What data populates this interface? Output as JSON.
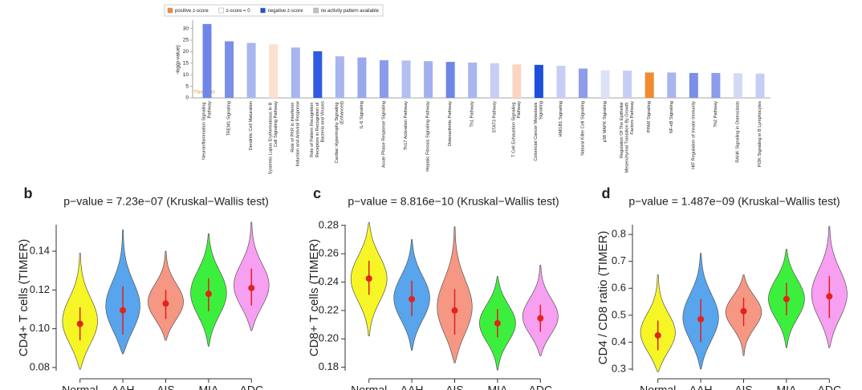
{
  "chart_data": [
    {
      "type": "bar",
      "ylabel": "-log(p-value)",
      "annotation": "Threshold",
      "legend": [
        {
          "label": "positive z-score",
          "color": "#f28a2f"
        },
        {
          "label": "z-score = 0",
          "color": "#ffffff"
        },
        {
          "label": "negative z-score",
          "color": "#1d4fdc"
        },
        {
          "label": "no activity pattern available",
          "color": "#c0c0c0"
        }
      ],
      "categories": [
        "Neuroinflammation Signaling Pathway",
        "TREM1 Signaling",
        "Dendritic Cell Maturation",
        "Systemic Lupus Erythematosus In B Cell Signaling Pathway",
        "Role of PKR in Interferon Induction and Antiviral Response",
        "Role of Pattern Recognition Receptors in Recognition of Bacteria and Viruses",
        "Cardiac Hypertrophy Signaling (Enhanced)",
        "IL-6 Signaling",
        "Acute Phase Response Signaling",
        "Th17 Activation Pathway",
        "Hepatic Fibrosis Signaling Pathway",
        "Osteoarthritis Pathway",
        "Th1 Pathway",
        "STAT3 Pathway",
        "T Cell Exhaustion Signaling Pathway",
        "Colorectal Cancer Metastasis Signaling",
        "HMGB1 Signaling",
        "Natural Killer Cell Signaling",
        "p38 MAPK Signaling",
        "Regulation Of The Epithelial Mesenchymal Transition By Growth Factors Pathway",
        "PPAR Signaling",
        "NF-κB Signaling",
        "HIF Regulation of Innate Immunity",
        "Th2 Pathway",
        "RANK Signaling in Osteoclasts",
        "PI3K Signaling in B Lymphocytes"
      ],
      "values": [
        32,
        24.5,
        23.8,
        23.2,
        21.8,
        20.2,
        18,
        17.5,
        16.3,
        16.2,
        15.9,
        15.6,
        15.3,
        15,
        14.5,
        14.3,
        13.9,
        12.7,
        12,
        11.8,
        11,
        11,
        10.8,
        10.8,
        10.7,
        10.5
      ],
      "colors": [
        "#6f86e8",
        "#7b8fe6",
        "#aab6ee",
        "#fbe0d0",
        "#a9b5ef",
        "#2f5be0",
        "#a9b5ef",
        "#9aa8ec",
        "#8c9cea",
        "#b4bff1",
        "#a3b0ee",
        "#6f86e8",
        "#a9b5ef",
        "#c6cef5",
        "#fbd5c3",
        "#1d4fdc",
        "#c6cef5",
        "#8c9cea",
        "#dde2f8",
        "#c6cef5",
        "#f28a2f",
        "#a9b5ef",
        "#7b8fe6",
        "#8c9cea",
        "#d4daf6",
        "#c6cef5"
      ],
      "ylim": [
        0,
        33
      ],
      "yticks": [
        0,
        5,
        10,
        15,
        20,
        25,
        30
      ]
    },
    {
      "type": "violin",
      "panel": "b",
      "title": "p−value = 7.23e−07 (Kruskal−Wallis test)",
      "ylabel": "CD4+ T cells (TIMER)",
      "categories": [
        "Normal",
        "AAH",
        "AIS",
        "MIA",
        "ADC"
      ],
      "colors": [
        "#f5f51a",
        "#4fa0ec",
        "#f4917c",
        "#33ee33",
        "#f79af0"
      ],
      "mean": [
        0.1025,
        0.1095,
        0.113,
        0.118,
        0.121
      ],
      "lower": [
        0.094,
        0.097,
        0.105,
        0.109,
        0.112
      ],
      "upper": [
        0.111,
        0.122,
        0.12,
        0.126,
        0.131
      ],
      "min": [
        0.079,
        0.087,
        0.094,
        0.091,
        0.099
      ],
      "max": [
        0.139,
        0.151,
        0.14,
        0.149,
        0.155
      ],
      "ylim": [
        0.075,
        0.157
      ],
      "yticks": [
        0.08,
        {
          "value": 0.1,
          "label": "0.10"
        },
        0.12,
        0.14
      ]
    },
    {
      "type": "violin",
      "panel": "c",
      "title": "p−value = 8.816e−10 (Kruskal−Wallis test)",
      "ylabel": "CD8+ T cells (TIMER)",
      "categories": [
        "Normal",
        "AAH",
        "AIS",
        "MIA",
        "ADC"
      ],
      "colors": [
        "#f5f51a",
        "#4fa0ec",
        "#f4917c",
        "#33ee33",
        "#f79af0"
      ],
      "mean": [
        0.2425,
        0.228,
        0.22,
        0.211,
        0.2145
      ],
      "lower": [
        0.231,
        0.216,
        0.203,
        0.201,
        0.205
      ],
      "upper": [
        0.255,
        0.241,
        0.235,
        0.221,
        0.224
      ],
      "min": [
        0.202,
        0.192,
        0.183,
        0.178,
        0.188
      ],
      "max": [
        0.282,
        0.27,
        0.279,
        0.244,
        0.252
      ],
      "ylim": [
        0.173,
        0.285
      ],
      "yticks": [
        0.18,
        {
          "value": 0.2,
          "label": "0.20"
        },
        0.22,
        0.24,
        0.26,
        0.28
      ]
    },
    {
      "type": "violin",
      "panel": "d",
      "title": "p−value = 1.487e−09 (Kruskal−Wallis test)",
      "ylabel": "CD4 / CD8 ratio (TIMER)",
      "categories": [
        "Normal",
        "AAH",
        "AIS",
        "MIA",
        "ADC"
      ],
      "colors": [
        "#f5f51a",
        "#4fa0ec",
        "#f4917c",
        "#33ee33",
        "#f79af0"
      ],
      "mean": [
        0.425,
        0.485,
        0.515,
        0.56,
        0.57
      ],
      "lower": [
        0.37,
        0.4,
        0.46,
        0.5,
        0.49
      ],
      "upper": [
        0.48,
        0.56,
        0.565,
        0.62,
        0.645
      ],
      "min": [
        0.29,
        0.3,
        0.35,
        0.38,
        0.38
      ],
      "max": [
        0.65,
        0.73,
        0.65,
        0.745,
        0.83
      ],
      "ylim": [
        0.27,
        0.86
      ],
      "yticks": [
        0.3,
        0.4,
        0.5,
        0.6,
        0.7,
        0.8
      ]
    }
  ]
}
